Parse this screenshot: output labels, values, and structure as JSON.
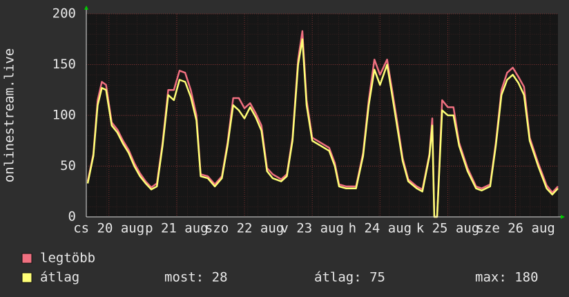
{
  "chart_data": {
    "type": "line",
    "y_label": "onlinestream.live",
    "x": [
      -7.5,
      -5.5,
      -4,
      -2.5,
      -1,
      1,
      3,
      5,
      7,
      9,
      11,
      13,
      15,
      17,
      19,
      21,
      23,
      25,
      27,
      29,
      31,
      32.5,
      35,
      37.5,
      40,
      42,
      44,
      46,
      48,
      50,
      52,
      54,
      56,
      58,
      61,
      63,
      65,
      67,
      68.5,
      70,
      72,
      75,
      78,
      80,
      81.5,
      84,
      87.5,
      90,
      92,
      94,
      96,
      98.5,
      100,
      102,
      104,
      106,
      109,
      111,
      113.5,
      114.5,
      115.2,
      116.2,
      118,
      120,
      122,
      124,
      127,
      130,
      132,
      135,
      137,
      139,
      141,
      143,
      145,
      147,
      149,
      152,
      155,
      157,
      159
    ],
    "series": [
      {
        "name": "legtöbb",
        "color": "#f07080",
        "values": [
          35,
          62,
          115,
          133,
          130,
          93,
          86,
          75,
          66,
          53,
          43,
          35,
          29,
          33,
          73,
          125,
          125,
          144,
          142,
          125,
          100,
          42,
          40,
          32,
          40,
          73,
          117,
          117,
          107,
          112,
          102,
          90,
          48,
          42,
          37,
          42,
          78,
          155,
          183,
          115,
          78,
          73,
          68,
          53,
          32,
          30,
          30,
          63,
          115,
          155,
          140,
          155,
          130,
          95,
          58,
          37,
          30,
          27,
          62,
          97,
          0,
          0,
          115,
          108,
          108,
          73,
          48,
          30,
          28,
          32,
          73,
          125,
          142,
          147,
          138,
          128,
          78,
          53,
          31,
          24,
          30
        ]
      },
      {
        "name": "átlag",
        "color": "#ffff77",
        "values": [
          33,
          60,
          110,
          127,
          125,
          90,
          83,
          72,
          63,
          50,
          40,
          33,
          27,
          30,
          70,
          120,
          115,
          135,
          133,
          118,
          95,
          40,
          38,
          30,
          38,
          70,
          110,
          105,
          97,
          108,
          98,
          85,
          45,
          38,
          35,
          40,
          75,
          150,
          175,
          110,
          75,
          70,
          65,
          50,
          30,
          28,
          28,
          60,
          110,
          145,
          130,
          150,
          125,
          90,
          55,
          35,
          28,
          25,
          60,
          90,
          0,
          0,
          105,
          100,
          100,
          70,
          45,
          28,
          26,
          30,
          70,
          120,
          135,
          140,
          132,
          120,
          75,
          50,
          28,
          22,
          28
        ]
      }
    ],
    "xlim": [
      -8,
      159
    ],
    "xticks": [
      {
        "value": 0,
        "label": "cs 20 aug"
      },
      {
        "value": 24,
        "label": "p 21 aug"
      },
      {
        "value": 48,
        "label": "szo 22 aug"
      },
      {
        "value": 72,
        "label": "v 23 aug"
      },
      {
        "value": 96,
        "label": "h 24 aug"
      },
      {
        "value": 120,
        "label": "k 25 aug"
      },
      {
        "value": 144,
        "label": "sze 26 aug"
      }
    ],
    "ylim": [
      0,
      200
    ],
    "yticks": [
      0,
      50,
      100,
      150,
      200
    ],
    "grid": true,
    "stats": [
      "most: 28",
      "átlag: 75",
      "max: 180"
    ]
  }
}
